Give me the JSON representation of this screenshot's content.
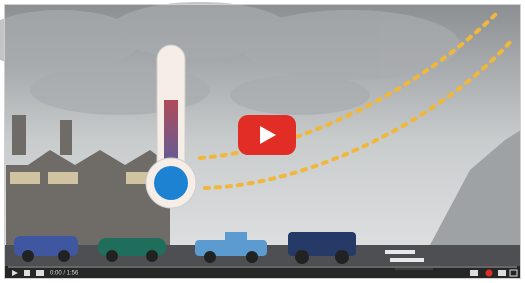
{
  "player": {
    "time": "0:00 / 1:56"
  }
}
